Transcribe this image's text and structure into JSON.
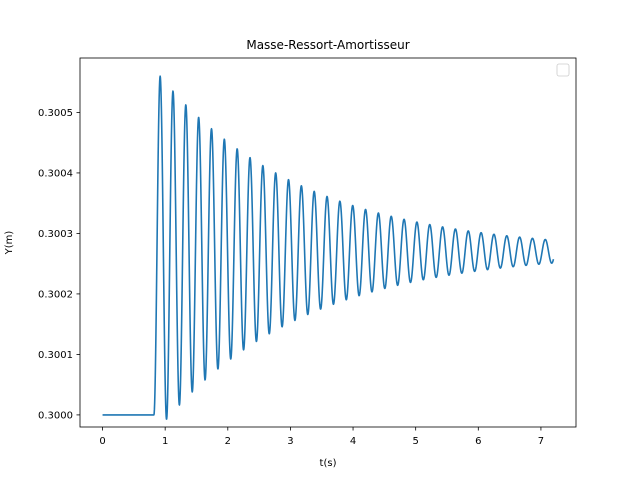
{
  "chart_data": {
    "type": "line",
    "title": "Masse-Ressort-Amortisseur",
    "xlabel": "t(s)",
    "ylabel": "Y(m)",
    "xlim": [
      -0.36,
      7.56
    ],
    "ylim": [
      0.29998,
      0.30059
    ],
    "x_ticks": [
      0,
      1,
      2,
      3,
      4,
      5,
      6,
      7
    ],
    "x_tick_labels": [
      "0",
      "1",
      "2",
      "3",
      "4",
      "5",
      "6",
      "7"
    ],
    "y_ticks": [
      0.3,
      0.3001,
      0.3002,
      0.3003,
      0.3004,
      0.3005
    ],
    "y_tick_labels": [
      "0.3000",
      "0.3001",
      "0.3002",
      "0.3003",
      "0.3004",
      "0.3005"
    ],
    "grid": false,
    "legend": {
      "placement": "top-right",
      "entries": []
    },
    "series": [
      {
        "color": "#1f77b4",
        "model": {
          "t_start": 0,
          "t_end": 7.2,
          "t_step": 0.004,
          "step_time": 0.82,
          "initial_value": 0.3,
          "final_value": 0.30027,
          "period": 0.205,
          "peak_value": 0.30056,
          "peak_time": 0.92,
          "last_amplitude": 2e-05
        }
      }
    ]
  }
}
